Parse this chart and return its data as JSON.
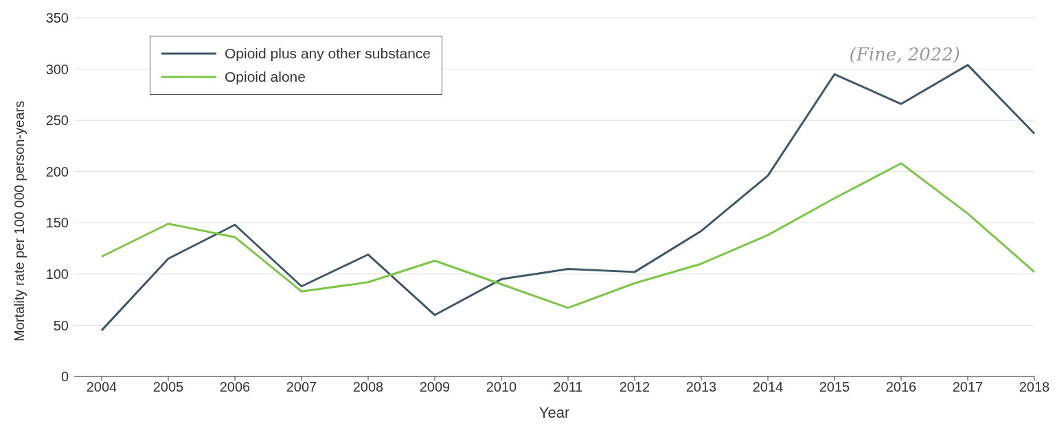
{
  "chart_data": {
    "type": "line",
    "xlabel": "Year",
    "ylabel": "Mortality rate per 100 000 person-years",
    "categories": [
      "2004",
      "2005",
      "2006",
      "2007",
      "2008",
      "2009",
      "2010",
      "2011",
      "2012",
      "2013",
      "2014",
      "2015",
      "2016",
      "2017",
      "2018"
    ],
    "series": [
      {
        "name": "Opioid plus any other substance",
        "color": "#3e5868",
        "values": [
          45,
          115,
          148,
          88,
          119,
          60,
          95,
          105,
          102,
          142,
          196,
          295,
          266,
          304,
          237
        ]
      },
      {
        "name": "Opioid alone",
        "color": "#7cc646",
        "values": [
          117,
          149,
          136,
          83,
          92,
          113,
          90,
          67,
          91,
          110,
          138,
          174,
          208,
          159,
          102
        ]
      }
    ],
    "ylim": [
      0,
      350
    ],
    "yticks": [
      0,
      50,
      100,
      150,
      200,
      250,
      300,
      350
    ],
    "grid": "y",
    "legend": "top left",
    "marker": "none",
    "line_style": "solid",
    "annotations": [
      "(Fine, 2022)"
    ]
  }
}
